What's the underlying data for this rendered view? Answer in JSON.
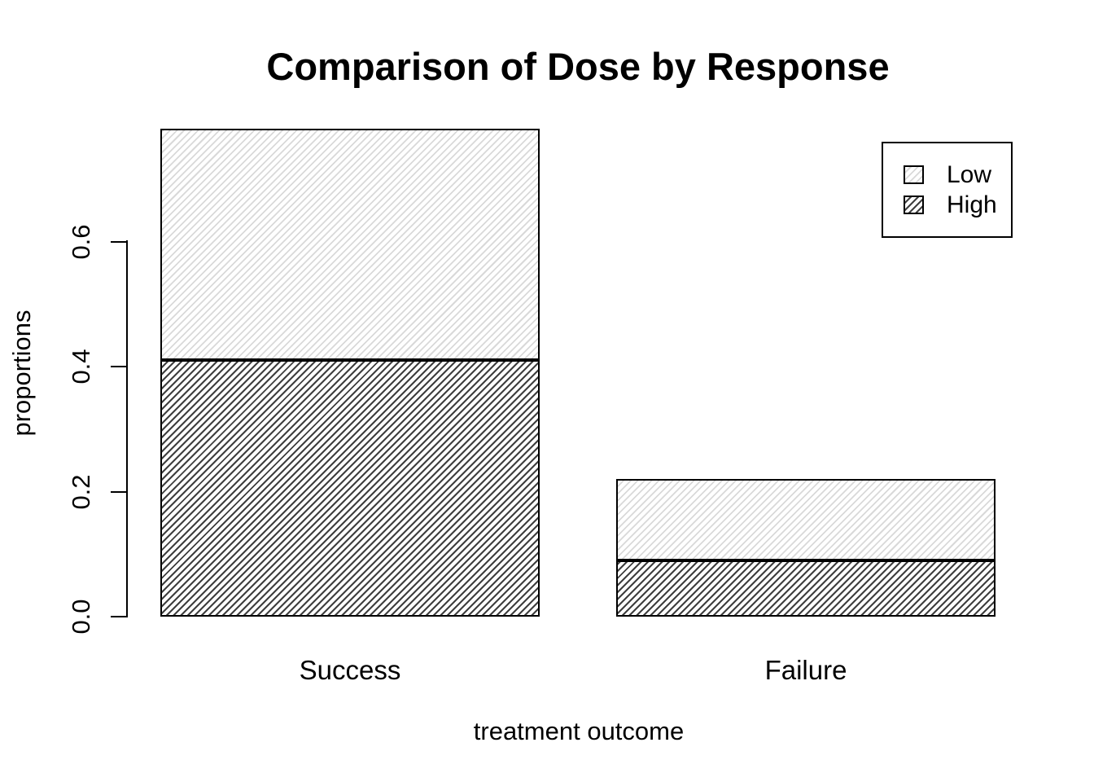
{
  "title": "Comparison of Dose by Response",
  "y_axis": {
    "label": "proportions",
    "tick_labels": [
      "0.0",
      "0.2",
      "0.4",
      "0.6"
    ],
    "tick_values": [
      0.0,
      0.2,
      0.4,
      0.6
    ]
  },
  "x_axis": {
    "label": "treatment outcome",
    "categories": [
      "Success",
      "Failure"
    ]
  },
  "legend": {
    "items": [
      {
        "label": "Low",
        "hatch": "light"
      },
      {
        "label": "High",
        "hatch": "dark"
      }
    ]
  },
  "colors": {
    "hatch_light": "#d9d9d9",
    "hatch_dark": "#3f3f3f",
    "stroke": "#000000",
    "background": "#ffffff"
  },
  "chart_data": {
    "type": "bar",
    "stacked": true,
    "categories": [
      "Success",
      "Failure"
    ],
    "series": [
      {
        "name": "High",
        "hatch": "dark",
        "values": [
          0.41,
          0.09
        ]
      },
      {
        "name": "Low",
        "hatch": "light",
        "values": [
          0.37,
          0.13
        ]
      }
    ],
    "stack_order_bottom_to_top": [
      "High",
      "Low"
    ],
    "bar_totals": [
      0.78,
      0.22
    ],
    "title": "Comparison of Dose by Response",
    "xlabel": "treatment outcome",
    "ylabel": "proportions",
    "ylim": [
      0,
      0.78
    ],
    "yticks": [
      0.0,
      0.2,
      0.4,
      0.6
    ],
    "grid": false,
    "legend_position": "top-right"
  }
}
